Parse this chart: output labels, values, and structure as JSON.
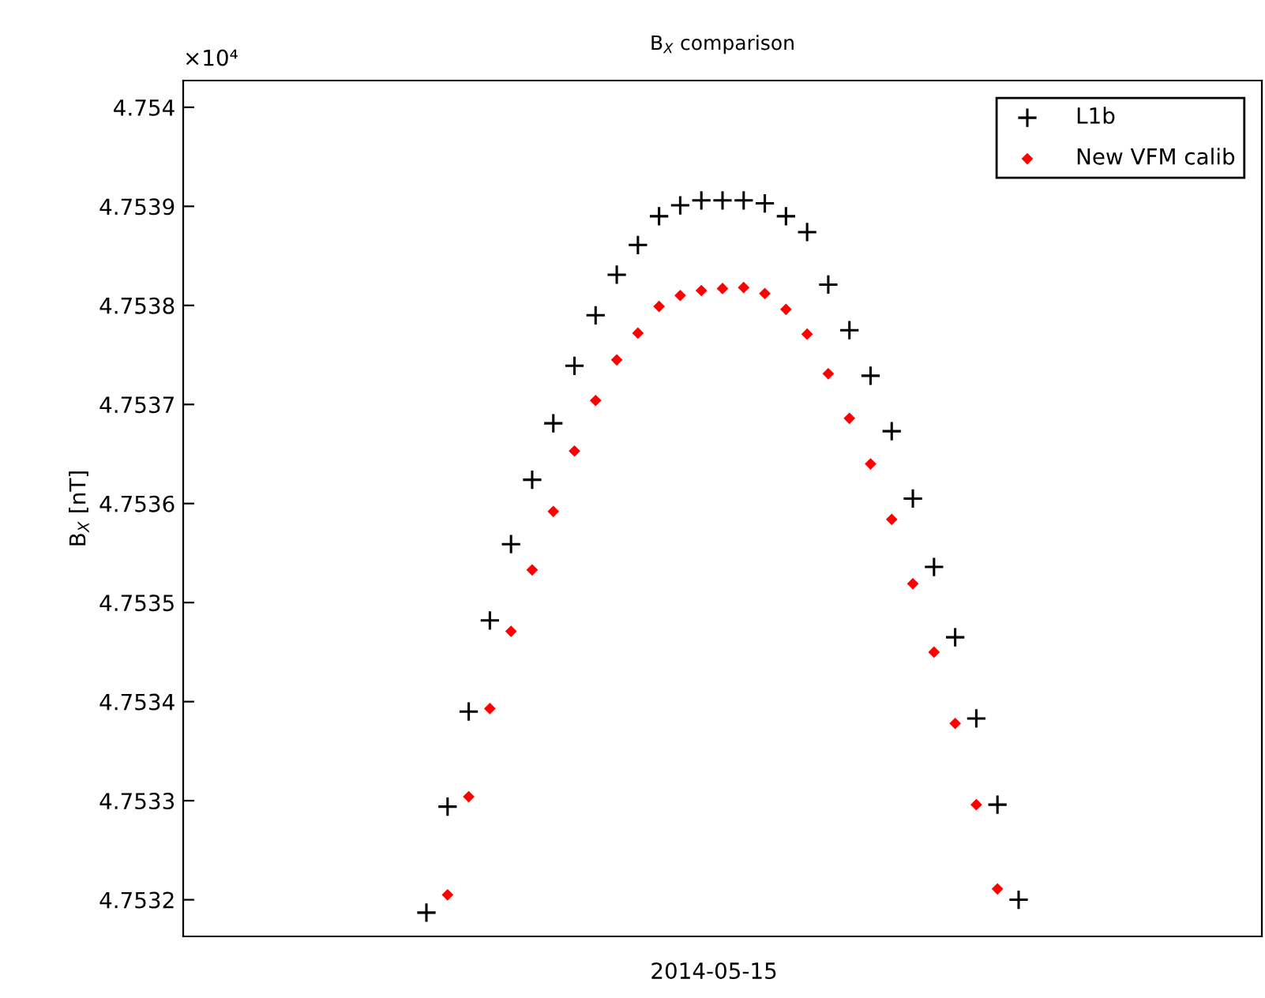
{
  "chart_data": {
    "type": "scatter",
    "title": "B$_{X}$ comparison",
    "ylabel": "B$_{X}$ [nT]",
    "annotations": [
      "×10⁴",
      "2014-05-15"
    ],
    "categories": [
      null,
      null,
      null,
      null,
      null,
      null,
      null,
      null,
      null,
      null,
      null,
      null,
      null,
      null,
      null,
      null,
      null,
      null,
      null,
      null,
      null,
      null,
      null,
      null,
      null,
      null,
      null,
      null,
      null,
      null,
      null,
      null,
      null,
      null,
      null,
      null,
      null,
      null,
      null,
      null,
      null,
      null,
      null,
      null,
      null,
      null,
      null,
      null,
      null,
      null,
      null
    ],
    "ylim": [
      4.753163,
      4.754027
    ],
    "yticks": [
      4.7532,
      4.7533,
      4.7534,
      4.7535,
      4.7536,
      4.7537,
      4.7538,
      4.7539,
      4.754
    ],
    "legend": "top right",
    "series": [
      {
        "name": "L1b",
        "color": "#000000",
        "marker": "cross",
        "values": [
          null,
          null,
          null,
          null,
          null,
          null,
          null,
          null,
          null,
          null,
          null,
          4.753187,
          4.753294,
          4.75339,
          4.753482,
          4.753559,
          4.753624,
          4.753681,
          4.753739,
          4.75379,
          4.753831,
          4.753861,
          4.75389,
          4.753901,
          4.753906,
          4.753906,
          4.753906,
          4.753903,
          4.75389,
          4.753874,
          4.753821,
          4.753775,
          4.753729,
          4.753673,
          4.753605,
          4.753536,
          4.753465,
          4.753383,
          4.753296,
          4.7532,
          null,
          null,
          null,
          null,
          null,
          null,
          null,
          null,
          null,
          null,
          null
        ]
      },
      {
        "name": "New VFM calib",
        "color": "#ff0000",
        "marker": "diamond",
        "values": [
          null,
          null,
          null,
          null,
          null,
          null,
          null,
          null,
          null,
          null,
          null,
          null,
          4.753205,
          4.753304,
          4.753393,
          4.753471,
          4.753533,
          4.753592,
          4.753653,
          4.753704,
          4.753745,
          4.753772,
          4.753799,
          4.75381,
          4.753815,
          4.753817,
          4.753818,
          4.753812,
          4.753796,
          4.753771,
          4.753731,
          4.753686,
          4.75364,
          4.753584,
          4.753519,
          4.75345,
          4.753378,
          4.753296,
          4.753211,
          null,
          null,
          null,
          null,
          null,
          null,
          null,
          null,
          null,
          null,
          null,
          null
        ]
      }
    ]
  }
}
